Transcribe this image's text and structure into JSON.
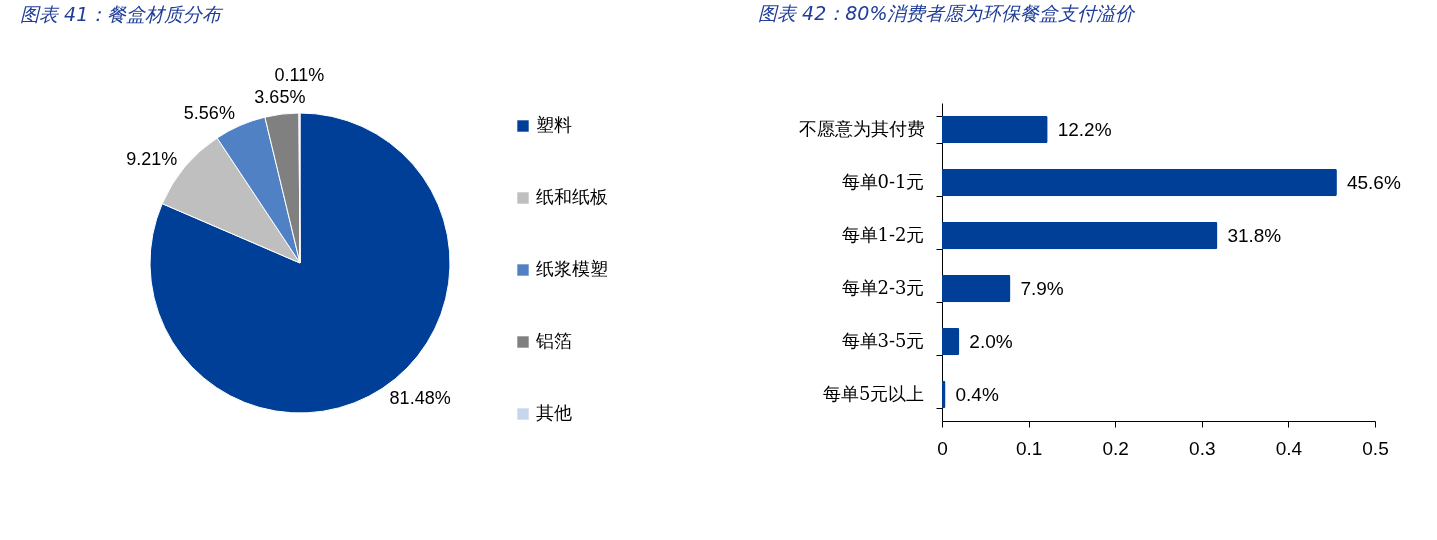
{
  "chart_data": [
    {
      "type": "pie",
      "title": "图表 41：餐盒材质分布",
      "categories": [
        "塑料",
        "纸和纸板",
        "纸浆模塑",
        "铝箔",
        "其他"
      ],
      "values": [
        81.48,
        9.21,
        5.56,
        3.65,
        0.11
      ],
      "colors": [
        "#003f98",
        "#bfbfbf",
        "#4f81c4",
        "#808080",
        "#c6d6ec"
      ],
      "value_labels": [
        "81.48%",
        "9.21%",
        "5.56%",
        "3.65%",
        "0.11%"
      ],
      "legend": "right"
    },
    {
      "type": "bar",
      "orientation": "horizontal",
      "title": "图表 42：80%消费者愿为环保餐盒支付溢价",
      "categories": [
        "不愿意为其付费",
        "每单0-1元",
        "每单1-2元",
        "每单2-3元",
        "每单3-5元",
        "每单5元以上"
      ],
      "values": [
        0.122,
        0.456,
        0.318,
        0.079,
        0.02,
        0.004
      ],
      "value_labels": [
        "12.2%",
        "45.6%",
        "31.8%",
        "7.9%",
        "2.0%",
        "0.4%"
      ],
      "color": "#003f98",
      "xlim": [
        0,
        0.5
      ],
      "xticks": [
        0,
        0.1,
        0.2,
        0.3,
        0.4,
        0.5
      ]
    }
  ]
}
